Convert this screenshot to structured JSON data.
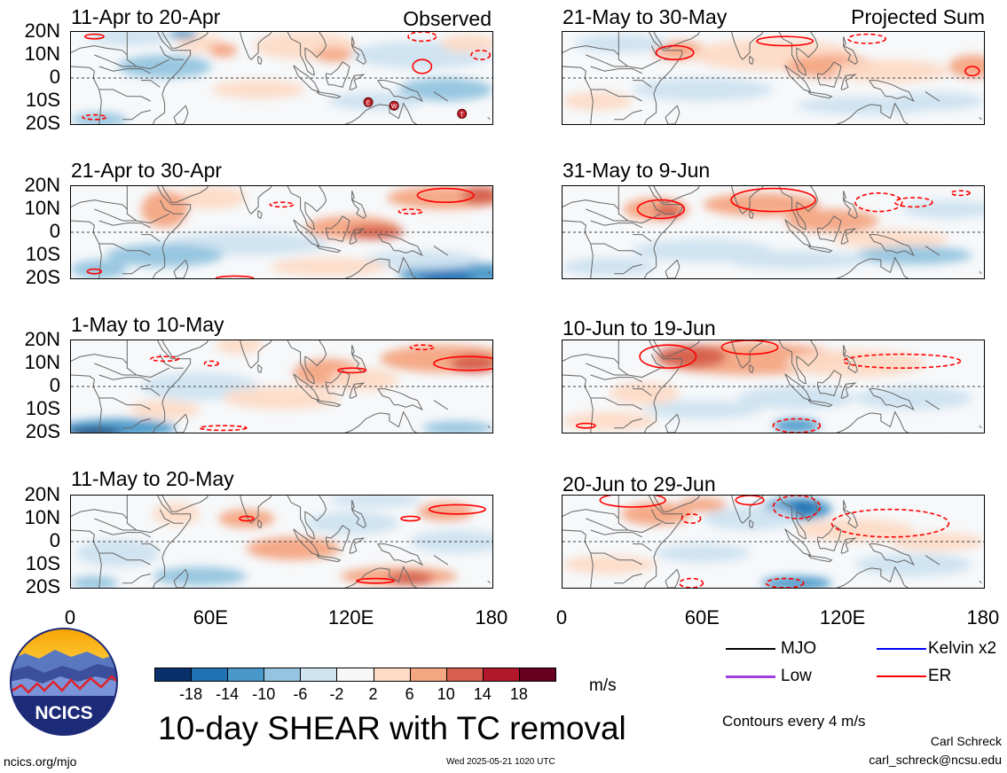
{
  "panels": [
    {
      "title": "11-Apr to 20-Apr",
      "tag": "Observed"
    },
    {
      "title": "21-Apr to 30-Apr",
      "tag": ""
    },
    {
      "title": "1-May to 10-May",
      "tag": ""
    },
    {
      "title": "11-May to 20-May",
      "tag": ""
    },
    {
      "title": "21-May to 30-May",
      "tag": "Projected Sum"
    },
    {
      "title": "31-May to 9-Jun",
      "tag": ""
    },
    {
      "title": "10-Jun to 19-Jun",
      "tag": ""
    },
    {
      "title": "20-Jun to 29-Jun",
      "tag": ""
    }
  ],
  "lat_labels": [
    "20N",
    "10N",
    "0",
    "10S",
    "20S"
  ],
  "lon_labels": [
    "0",
    "60E",
    "120E",
    "180"
  ],
  "colorbar": {
    "colors": [
      "#08306b",
      "#2171b5",
      "#4a98c9",
      "#94c4df",
      "#cfe3f0",
      "#f7f7f7",
      "#fddbc7",
      "#f4a582",
      "#d6604d",
      "#b2182b",
      "#67001f"
    ],
    "labels": [
      "-18",
      "-14",
      "-10",
      "-6",
      "-2",
      "2",
      "6",
      "10",
      "14",
      "18"
    ],
    "units": "m/s"
  },
  "main_title": "10-day SHEAR with TC removal",
  "legend": [
    {
      "label": "MJO",
      "color": "#000000"
    },
    {
      "label": "Kelvin x2",
      "color": "#0000ff"
    },
    {
      "label": "Low",
      "color": "#a040e0"
    },
    {
      "label": "ER",
      "color": "#ff0000"
    }
  ],
  "contour_note": "Contours every 4 m/s",
  "author": "Carl Schreck",
  "email": "carl_schreck@ncsu.edu",
  "site": "ncics.org/mjo",
  "timestamp": "Wed 2025-05-21 1020 UTC",
  "logo_text": "NCICS",
  "tc_markers": [
    "E",
    "W",
    "T"
  ]
}
